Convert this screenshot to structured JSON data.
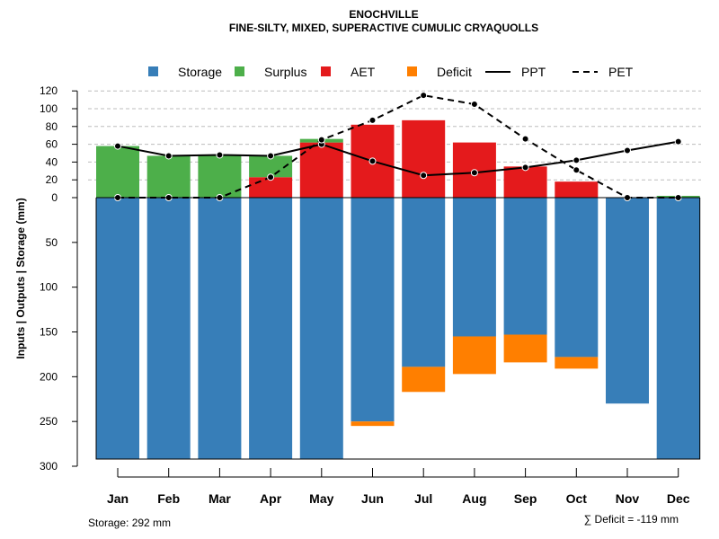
{
  "chart_data": {
    "type": "bar",
    "title": "ENOCHVILLE",
    "subtitle": "FINE-SILTY, MIXED, SUPERACTIVE CUMULIC CRYAQUOLLS",
    "ylabel": "Inputs | Outputs | Storage    (mm)",
    "ylim": [
      -300,
      120
    ],
    "y_ticks_upper": [
      "120",
      "100",
      "80",
      "60",
      "40",
      "20",
      "0"
    ],
    "y_ticks_lower": [
      "50",
      "100",
      "150",
      "200",
      "250",
      "300"
    ],
    "y_tick_values_upper": [
      120,
      100,
      80,
      60,
      40,
      20,
      0
    ],
    "y_tick_values_lower": [
      50,
      100,
      150,
      200,
      250,
      300
    ],
    "categories": [
      "Jan",
      "Feb",
      "Mar",
      "Apr",
      "May",
      "Jun",
      "Jul",
      "Aug",
      "Sep",
      "Oct",
      "Nov",
      "Dec"
    ],
    "legend": [
      "Storage",
      "Surplus",
      "AET",
      "Deficit",
      "PPT",
      "PET"
    ],
    "colors": {
      "Storage": "#377eb8",
      "Surplus": "#4daf4a",
      "AET": "#e41a1c",
      "Deficit": "#ff7f00",
      "PPT": "#000000",
      "PET": "#000000"
    },
    "series": [
      {
        "name": "Storage",
        "values": [
          292,
          292,
          292,
          292,
          292,
          250,
          189,
          155,
          153,
          178,
          230,
          292
        ]
      },
      {
        "name": "Deficit",
        "values": [
          0,
          0,
          0,
          0,
          0,
          5,
          28,
          42,
          31,
          13,
          0,
          0
        ]
      },
      {
        "name": "AET",
        "values": [
          0,
          0,
          0,
          23,
          62,
          82,
          87,
          62,
          35,
          18,
          0,
          0
        ]
      },
      {
        "name": "Surplus",
        "values": [
          58,
          47,
          48,
          24,
          4,
          0,
          0,
          0,
          0,
          0,
          0,
          2
        ]
      },
      {
        "name": "PPT",
        "values": [
          58,
          47,
          48,
          47,
          60,
          41,
          25,
          28,
          34,
          42,
          53,
          63
        ]
      },
      {
        "name": "PET",
        "values": [
          0,
          0,
          0,
          23,
          65,
          87,
          115,
          105,
          66,
          31,
          0,
          0
        ]
      }
    ]
  },
  "storage_label": "Storage: 292 mm",
  "deficit_label": "∑ Deficit = -119 mm"
}
